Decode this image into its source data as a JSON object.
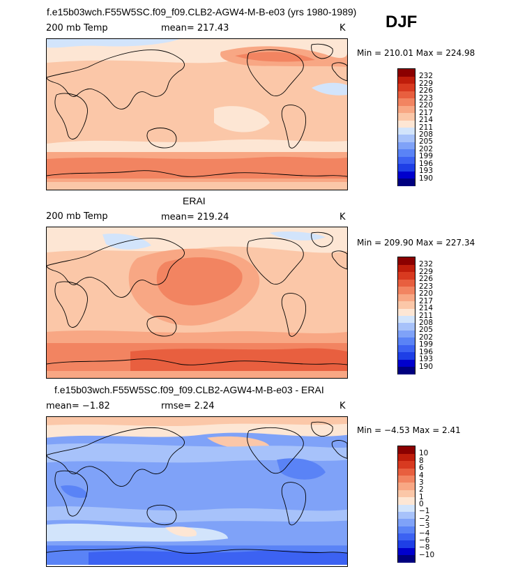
{
  "season": "DJF",
  "panels": [
    {
      "id": "model",
      "title": "f.e15b03wch.F55W5SC.f09_f09.CLB2-AGW4-M-B-e03 (yrs 1980-1989)",
      "left_label": "200 mb Temp",
      "mid_label": "mean=  217.43",
      "right_label": "K",
      "minmax": "Min = 210.01 Max = 224.98"
    },
    {
      "id": "obs",
      "title": "ERAI",
      "left_label": "200 mb Temp",
      "mid_label": "mean=  219.24",
      "right_label": "K",
      "minmax": "Min = 209.90 Max = 227.34"
    },
    {
      "id": "diff",
      "title": "f.e15b03wch.F55W5SC.f09_f09.CLB2-AGW4-M-B-e03 - ERAI",
      "left_label": "mean=  −1.82",
      "mid_label": "rmse=    2.24",
      "right_label": "K",
      "minmax": "Min =   −4.53 Max =    2.41"
    }
  ],
  "chart_data": [
    {
      "type": "heatmap",
      "title": "f.e15b03wch.F55W5SC.f09_f09.CLB2-AGW4-M-B-e03 (yrs 1980-1989)",
      "variable": "200 mb Temp",
      "units": "K",
      "mean": 217.43,
      "min": 210.01,
      "max": 224.98,
      "levels": [
        190,
        193,
        196,
        199,
        202,
        205,
        208,
        211,
        214,
        217,
        220,
        223,
        226,
        229,
        232
      ],
      "level_labels": [
        "190",
        "193",
        "196",
        "199",
        "202",
        "205",
        "208",
        "211",
        "214",
        "217",
        "220",
        "223",
        "226",
        "229",
        "232"
      ]
    },
    {
      "type": "heatmap",
      "title": "ERAI",
      "variable": "200 mb Temp",
      "units": "K",
      "mean": 219.24,
      "min": 209.9,
      "max": 227.34,
      "levels": [
        190,
        193,
        196,
        199,
        202,
        205,
        208,
        211,
        214,
        217,
        220,
        223,
        226,
        229,
        232
      ],
      "level_labels": [
        "190",
        "193",
        "196",
        "199",
        "202",
        "205",
        "208",
        "211",
        "214",
        "217",
        "220",
        "223",
        "226",
        "229",
        "232"
      ]
    },
    {
      "type": "heatmap",
      "title": "f.e15b03wch.F55W5SC.f09_f09.CLB2-AGW4-M-B-e03 - ERAI",
      "units": "K",
      "mean": -1.82,
      "rmse": 2.24,
      "min": -4.53,
      "max": 2.41,
      "levels": [
        -10,
        -8,
        -6,
        -4,
        -3,
        -2,
        -1,
        0,
        1,
        2,
        3,
        4,
        6,
        8,
        10
      ],
      "level_labels": [
        "−10",
        "−8",
        "−6",
        "−4",
        "−3",
        "−2",
        "−1",
        "0",
        "1",
        "2",
        "3",
        "4",
        "6",
        "8",
        "10"
      ]
    }
  ],
  "colors": {
    "palette": [
      "#00007f",
      "#0000cd",
      "#1e3fe6",
      "#3c62f2",
      "#5a83f6",
      "#7fa2f8",
      "#a7c2fa",
      "#d2e4fb",
      "#fde6d4",
      "#fbc7a8",
      "#f8a784",
      "#f28461",
      "#e85f3f",
      "#d83a20",
      "#bf1d0b",
      "#8b0000"
    ],
    "land_outline": "#000000"
  }
}
